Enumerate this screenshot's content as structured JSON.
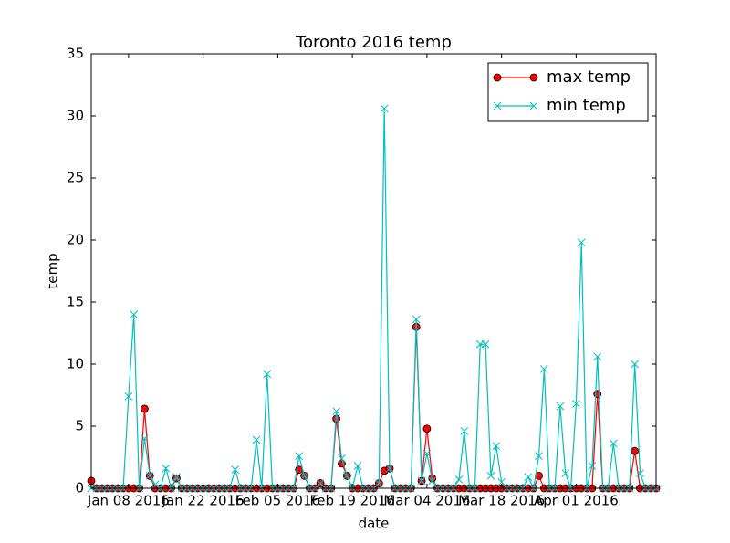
{
  "chart_data": {
    "type": "line",
    "title": "Toronto 2016 temp",
    "x_label": "date",
    "y_label": "temp",
    "x": [
      "2016-01-01",
      "2016-01-02",
      "2016-01-03",
      "2016-01-04",
      "2016-01-05",
      "2016-01-06",
      "2016-01-07",
      "2016-01-08",
      "2016-01-09",
      "2016-01-10",
      "2016-01-11",
      "2016-01-12",
      "2016-01-13",
      "2016-01-14",
      "2016-01-15",
      "2016-01-16",
      "2016-01-17",
      "2016-01-18",
      "2016-01-19",
      "2016-01-20",
      "2016-01-21",
      "2016-01-22",
      "2016-01-23",
      "2016-01-24",
      "2016-01-25",
      "2016-01-26",
      "2016-01-27",
      "2016-01-28",
      "2016-01-29",
      "2016-01-30",
      "2016-01-31",
      "2016-02-01",
      "2016-02-02",
      "2016-02-03",
      "2016-02-04",
      "2016-02-05",
      "2016-02-06",
      "2016-02-07",
      "2016-02-08",
      "2016-02-09",
      "2016-02-10",
      "2016-02-11",
      "2016-02-12",
      "2016-02-13",
      "2016-02-14",
      "2016-02-15",
      "2016-02-16",
      "2016-02-17",
      "2016-02-18",
      "2016-02-19",
      "2016-02-20",
      "2016-02-21",
      "2016-02-22",
      "2016-02-23",
      "2016-02-24",
      "2016-02-25",
      "2016-02-26",
      "2016-02-27",
      "2016-02-28",
      "2016-02-29",
      "2016-03-01",
      "2016-03-02",
      "2016-03-03",
      "2016-03-04",
      "2016-03-05",
      "2016-03-06",
      "2016-03-07",
      "2016-03-08",
      "2016-03-09",
      "2016-03-10",
      "2016-03-11",
      "2016-03-12",
      "2016-03-13",
      "2016-03-14",
      "2016-03-15",
      "2016-03-16",
      "2016-03-17",
      "2016-03-18",
      "2016-03-19",
      "2016-03-20",
      "2016-03-21",
      "2016-03-22",
      "2016-03-23",
      "2016-03-24",
      "2016-03-25",
      "2016-03-26",
      "2016-03-27",
      "2016-03-28",
      "2016-03-29",
      "2016-03-30",
      "2016-03-31",
      "2016-04-01",
      "2016-04-02",
      "2016-04-03",
      "2016-04-04",
      "2016-04-05",
      "2016-04-06",
      "2016-04-07",
      "2016-04-08",
      "2016-04-09",
      "2016-04-10",
      "2016-04-11",
      "2016-04-12",
      "2016-04-13",
      "2016-04-14",
      "2016-04-15",
      "2016-04-16"
    ],
    "series": [
      {
        "name": "max temp",
        "color": "#ff0000",
        "marker": "o",
        "values": [
          0.6,
          0,
          0,
          0,
          0,
          0,
          0,
          0,
          0,
          0,
          6.4,
          1,
          0,
          0,
          0,
          0,
          0.8,
          0,
          0,
          0,
          0,
          0,
          0,
          0,
          0,
          0,
          0,
          0,
          0,
          0,
          0,
          0,
          0,
          0,
          0,
          0,
          0,
          0,
          0,
          1.5,
          1,
          0,
          0,
          0.4,
          0,
          0,
          5.6,
          2,
          1,
          0,
          0,
          0,
          0,
          0,
          0.4,
          1.4,
          1.6,
          0,
          0,
          0,
          0,
          13,
          0.6,
          4.8,
          0.8,
          0,
          0,
          0,
          0,
          0,
          0,
          0,
          0,
          0,
          0,
          0,
          0,
          0,
          0,
          0,
          0,
          0,
          0,
          0,
          1,
          0,
          0,
          0,
          0,
          0,
          0,
          0,
          0,
          0,
          0,
          7.6,
          0,
          0,
          0,
          0,
          0,
          0,
          3,
          0,
          0,
          0,
          0
        ]
      },
      {
        "name": "min temp",
        "color": "#00bfbf",
        "marker": "x",
        "values": [
          0,
          0,
          0,
          0,
          0,
          0,
          0,
          7.4,
          14,
          0,
          4,
          1,
          0.3,
          0,
          1.6,
          0,
          0.9,
          0,
          0,
          0,
          0,
          0,
          0,
          0,
          0,
          0,
          0,
          1.5,
          0,
          0,
          0,
          3.9,
          0,
          9.2,
          0,
          0,
          0,
          0,
          0,
          2.6,
          1,
          0,
          0,
          0.4,
          0,
          0,
          6.2,
          2.4,
          1,
          0,
          1.8,
          0,
          0,
          0,
          0.4,
          30.6,
          1.6,
          0,
          0,
          0,
          0,
          13.6,
          0.6,
          2.8,
          0.6,
          0,
          0,
          0,
          0,
          0.7,
          4.6,
          0,
          0,
          11.6,
          11.6,
          1,
          3.4,
          0.5,
          0,
          0,
          0,
          0,
          0.9,
          0,
          2.6,
          9.6,
          0,
          0,
          6.6,
          1.2,
          0,
          6.8,
          19.8,
          0,
          1.8,
          10.6,
          0,
          0,
          3.6,
          0,
          0,
          0,
          10,
          1.2,
          0,
          0,
          0
        ]
      }
    ],
    "xlim": [
      "2016-01-01",
      "2016-04-16"
    ],
    "xticks": [
      {
        "value": "2016-01-08",
        "label": "Jan 08 2016"
      },
      {
        "value": "2016-01-22",
        "label": "Jan 22 2016"
      },
      {
        "value": "2016-02-05",
        "label": "Feb 05 2016"
      },
      {
        "value": "2016-02-19",
        "label": "Feb 19 2016"
      },
      {
        "value": "2016-03-04",
        "label": "Mar 04 2016"
      },
      {
        "value": "2016-03-18",
        "label": "Mar 18 2016"
      },
      {
        "value": "2016-04-01",
        "label": "Apr 01 2016"
      }
    ],
    "ylim": [
      0,
      35
    ],
    "yticks": [
      0,
      5,
      10,
      15,
      20,
      25,
      30,
      35
    ],
    "legend": "upper right",
    "grid": false
  }
}
